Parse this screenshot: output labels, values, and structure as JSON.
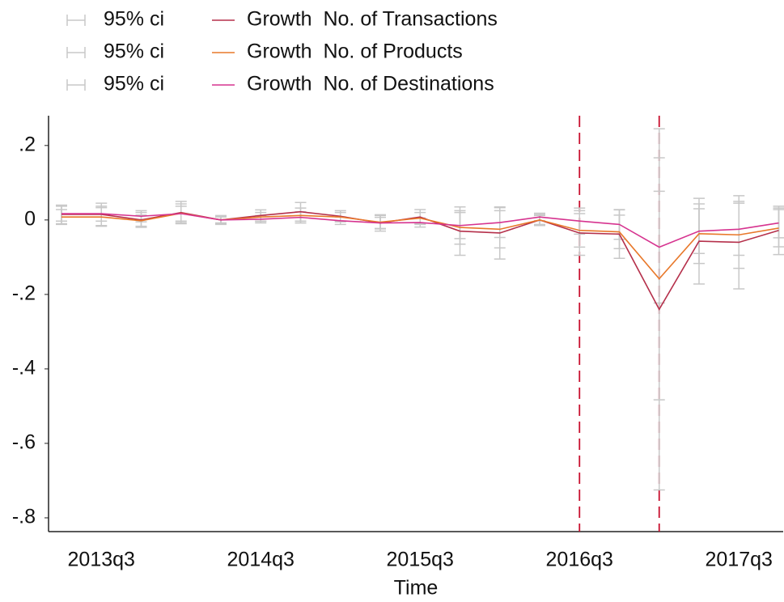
{
  "chart_data": {
    "type": "line",
    "x_label": "Time",
    "categories": [
      null,
      "2013q3",
      null,
      null,
      null,
      "2014q3",
      null,
      null,
      null,
      "2015q3",
      null,
      null,
      null,
      "2016q3",
      null,
      null,
      null,
      "2017q3",
      null
    ],
    "reference_lines": [
      13,
      15
    ],
    "reference_color": "#c8102e",
    "ci_color": "#c8c8c8",
    "ylim": [
      -0.837,
      0.28
    ],
    "yticks": [
      {
        "value": 0.2,
        "label": ".2"
      },
      0,
      {
        "value": -0.2,
        "label": "-.2"
      },
      {
        "value": -0.4,
        "label": "-.4"
      },
      {
        "value": -0.6,
        "label": "-.6"
      },
      {
        "value": -0.8,
        "label": "-.8"
      }
    ],
    "series": [
      {
        "name": "Growth  No. of Transactions",
        "ci_name": "95% ci",
        "color": "#b5304b",
        "values": [
          0.015,
          0.015,
          0,
          0.02,
          0,
          0.012,
          0.022,
          0.01,
          -0.008,
          0.008,
          -0.03,
          -0.035,
          0,
          -0.035,
          -0.038,
          -0.24,
          -0.057,
          -0.06,
          -0.028
        ],
        "ci_low": [
          -0.01,
          -0.015,
          -0.02,
          -0.01,
          -0.012,
          -0.003,
          -0.003,
          -0.005,
          -0.03,
          -0.012,
          -0.095,
          -0.105,
          -0.015,
          -0.095,
          -0.103,
          -0.725,
          -0.172,
          -0.185,
          -0.093
        ],
        "ci_high": [
          0.04,
          0.045,
          0.02,
          0.05,
          0.012,
          0.027,
          0.047,
          0.025,
          0.014,
          0.028,
          0.035,
          0.035,
          0.015,
          0.025,
          0.027,
          0.245,
          0.058,
          0.065,
          0.037
        ]
      },
      {
        "name": "Growth  No. of Products",
        "ci_name": "95% ci",
        "color": "#e8782a",
        "values": [
          0.008,
          0.008,
          -0.002,
          0.018,
          0,
          0.008,
          0.012,
          0.008,
          -0.006,
          0.005,
          -0.02,
          -0.025,
          0,
          -0.028,
          -0.032,
          -0.158,
          -0.037,
          -0.04,
          -0.022
        ],
        "ci_low": [
          -0.012,
          -0.017,
          -0.017,
          -0.007,
          -0.01,
          -0.004,
          -0.008,
          -0.004,
          -0.024,
          -0.01,
          -0.065,
          -0.075,
          -0.012,
          -0.073,
          -0.077,
          -0.483,
          -0.117,
          -0.13,
          -0.072
        ],
        "ci_high": [
          0.028,
          0.033,
          0.013,
          0.043,
          0.01,
          0.02,
          0.032,
          0.02,
          0.012,
          0.02,
          0.025,
          0.025,
          0.012,
          0.017,
          0.013,
          0.167,
          0.043,
          0.05,
          0.028
        ]
      },
      {
        "name": "Growth  No. of Destinations",
        "ci_name": "95% ci",
        "color": "#d6338f",
        "values": [
          0.017,
          0.017,
          0.01,
          0.017,
          0,
          0.002,
          0.007,
          -0.002,
          -0.008,
          -0.007,
          -0.015,
          -0.007,
          0.008,
          -0.003,
          -0.012,
          -0.073,
          -0.03,
          -0.025,
          -0.008
        ],
        "ci_low": [
          -0.003,
          -0.003,
          -0.005,
          -0.003,
          -0.008,
          -0.008,
          -0.008,
          -0.012,
          -0.023,
          -0.019,
          -0.05,
          -0.047,
          -0.002,
          -0.038,
          -0.052,
          -0.223,
          -0.09,
          -0.095,
          -0.048
        ],
        "ci_high": [
          0.037,
          0.037,
          0.025,
          0.037,
          0.008,
          0.012,
          0.022,
          0.008,
          0.007,
          0.005,
          0.02,
          0.033,
          0.018,
          0.032,
          0.028,
          0.077,
          0.03,
          0.045,
          0.032
        ]
      }
    ]
  }
}
